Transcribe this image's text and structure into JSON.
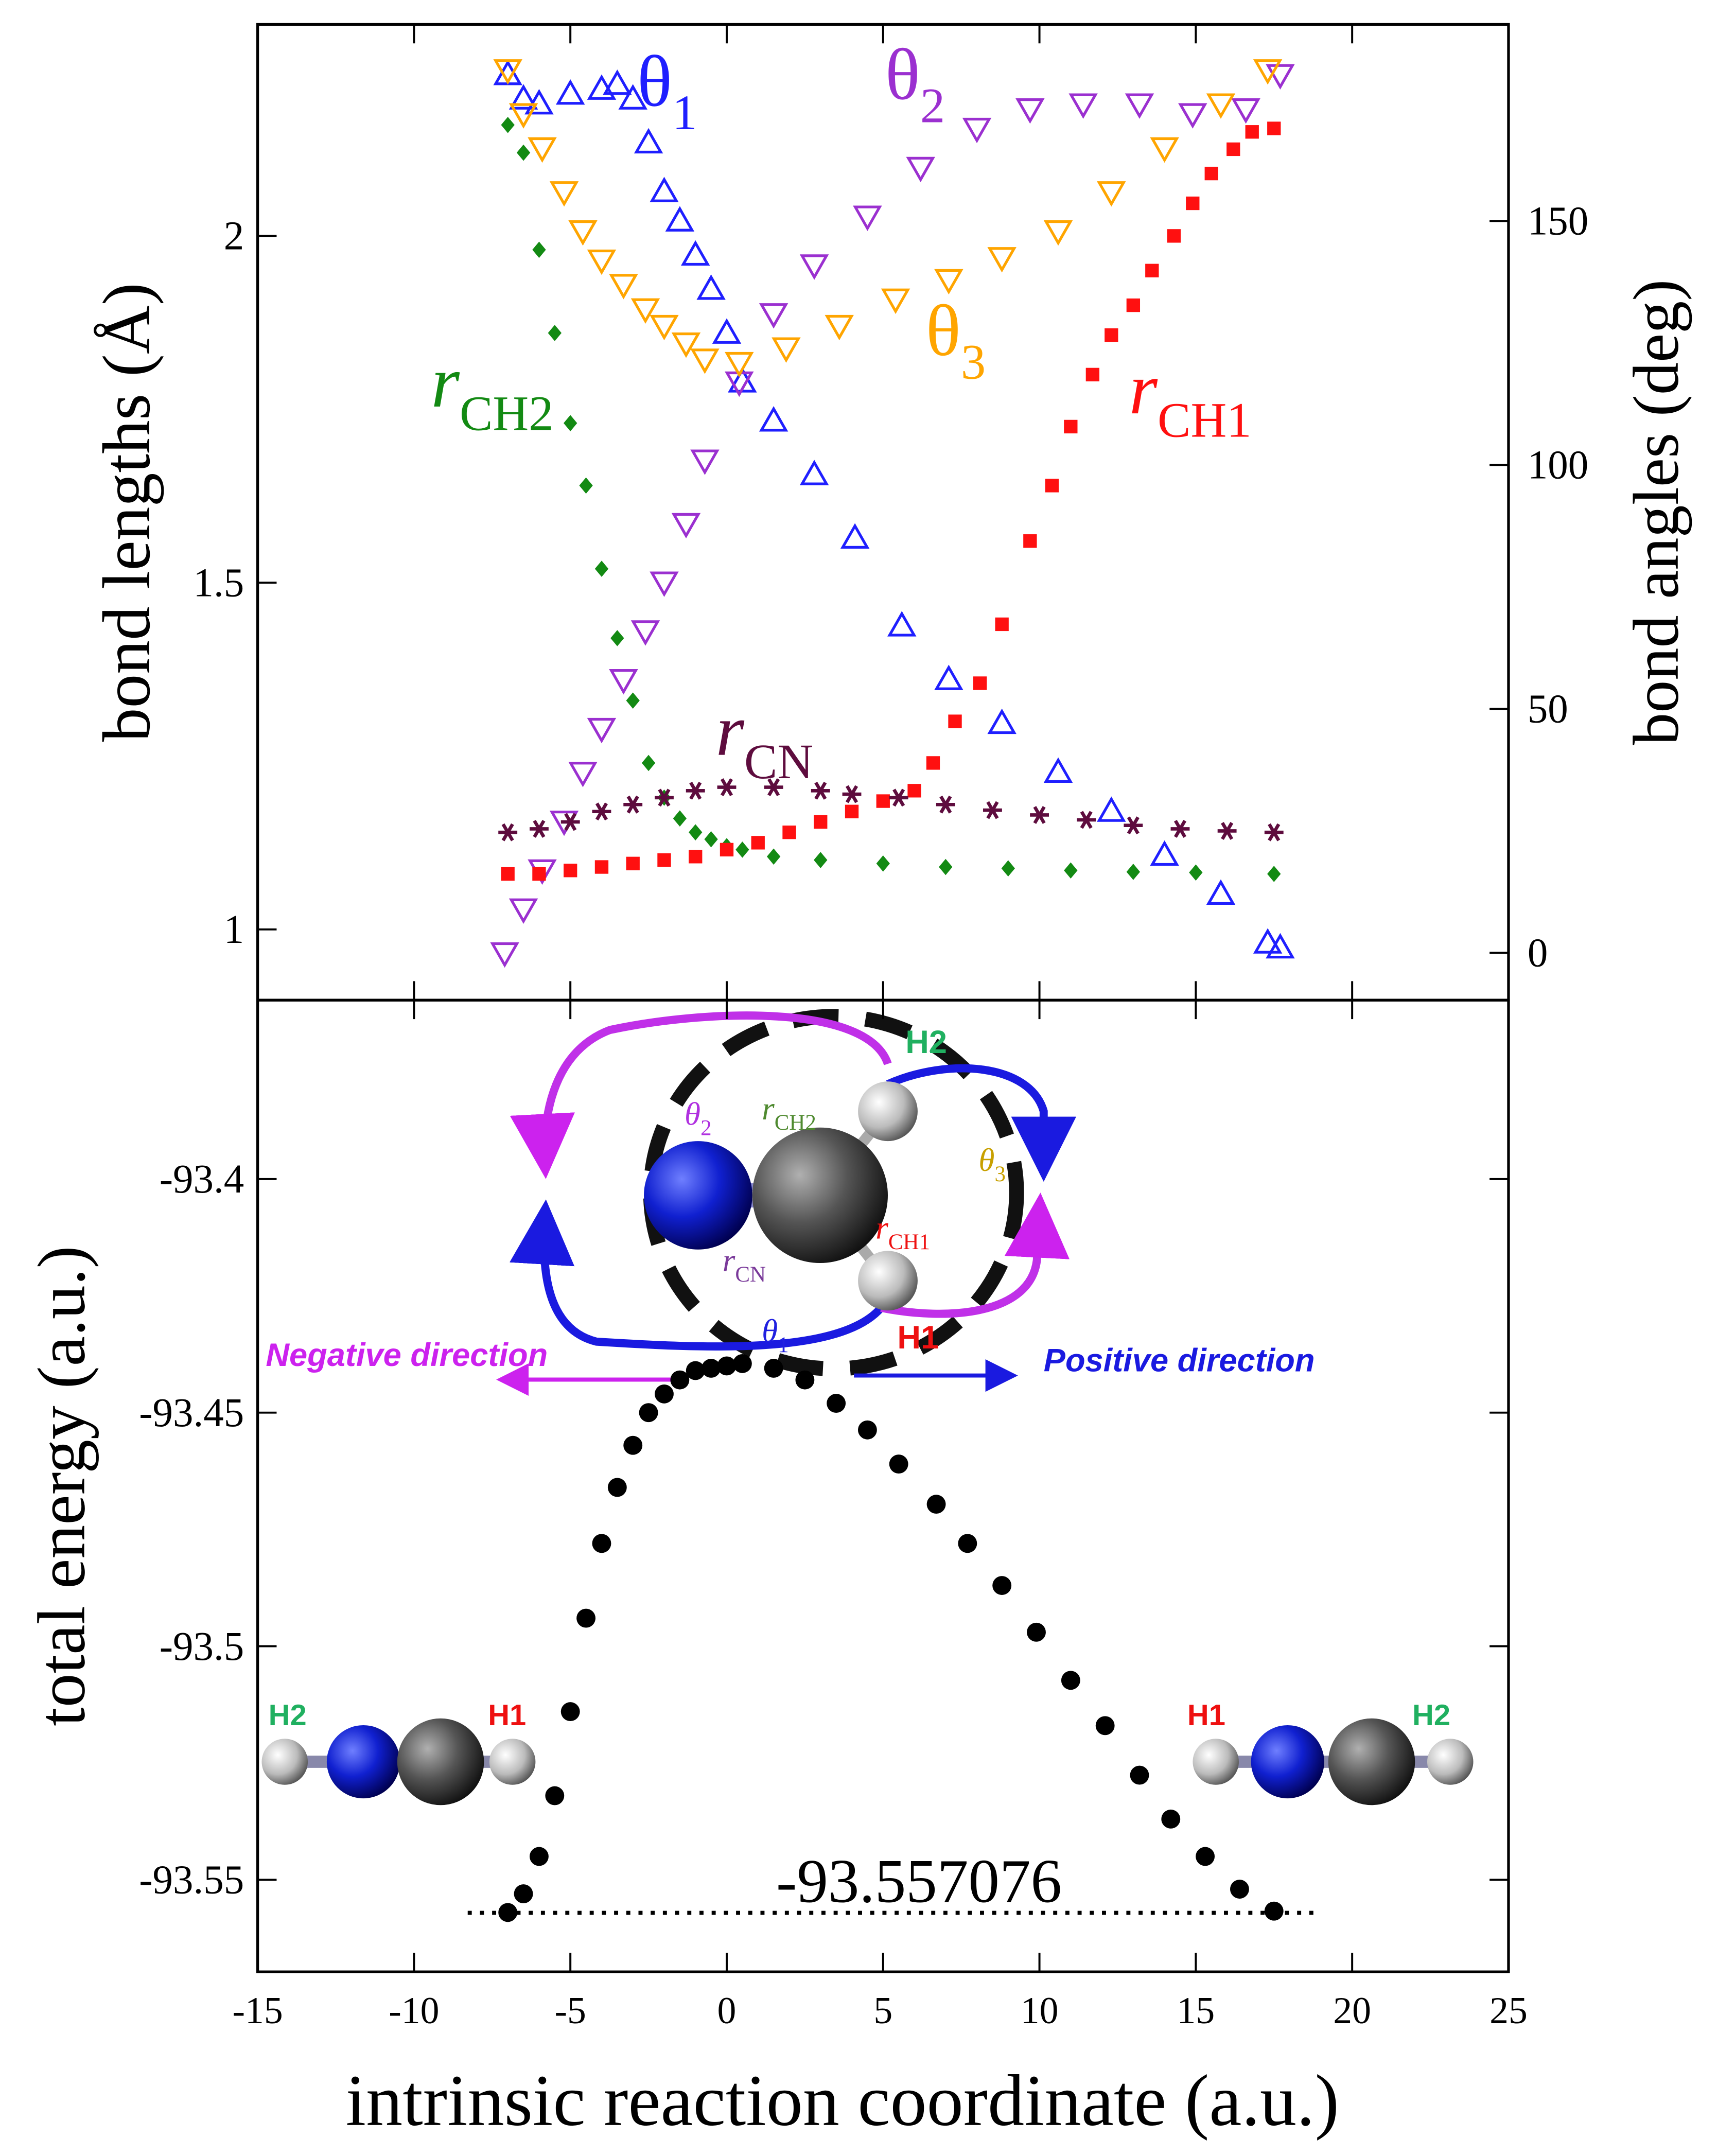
{
  "chart_data": [
    {
      "type": "scatter",
      "ylabel": "bond lengths (Å)",
      "y2label": "bond angles (deg)",
      "xlim": [
        -15,
        25
      ],
      "xticks": [
        -15,
        -10,
        -5,
        0,
        5,
        10,
        15,
        20,
        25
      ],
      "ylim": [
        0.898,
        2.305
      ],
      "yticks": [
        1,
        1.5,
        2
      ],
      "y2lim": [
        -9.7,
        190.3
      ],
      "y2ticks": [
        0,
        50,
        100,
        150
      ],
      "series": [
        {
          "name": "θ",
          "subscript": "1",
          "axis": "y2",
          "color": "#1f1fff",
          "marker": "triangle-up",
          "x": [
            -7,
            -6.5,
            -6,
            -5,
            -4,
            -3.5,
            -3,
            -2.5,
            -2,
            -1.5,
            -1,
            -0.5,
            0,
            0.5,
            1.5,
            2.8,
            4.1,
            5.6,
            7.1,
            8.8,
            10.6,
            12.3,
            14,
            15.8,
            17.3,
            17.7
          ],
          "values": [
            180,
            175,
            174,
            176,
            177,
            178,
            175,
            166,
            156,
            150,
            143,
            136,
            127,
            117,
            109,
            98,
            85,
            67,
            56,
            47,
            37,
            29,
            20,
            12,
            2,
            1
          ]
        },
        {
          "name": "θ",
          "subscript": "2",
          "axis": "y2",
          "color": "#9b30d0",
          "marker": "triangle-down",
          "x": [
            -7.1,
            -6.5,
            -5.9,
            -5.2,
            -4.6,
            -4,
            -3.3,
            -2.6,
            -2,
            -1.3,
            -0.7,
            0.4,
            1.5,
            2.8,
            4.5,
            6.2,
            8,
            9.7,
            11.4,
            13.2,
            14.9,
            16.6,
            17.7
          ],
          "values": [
            0,
            9,
            17,
            27,
            37,
            46,
            56,
            66,
            76,
            88,
            101,
            117,
            131,
            141,
            151,
            161,
            169,
            173,
            174,
            174,
            172,
            173,
            180
          ]
        },
        {
          "name": "θ",
          "subscript": "3",
          "axis": "y2",
          "color": "#ffa500",
          "marker": "triangle-down",
          "x": [
            -7,
            -6.5,
            -5.9,
            -5.2,
            -4.6,
            -4,
            -3.3,
            -2.6,
            -2,
            -1.3,
            -0.7,
            0.4,
            1.9,
            3.6,
            5.4,
            7.1,
            8.8,
            10.6,
            12.3,
            14,
            15.8,
            17.3
          ],
          "values": [
            181,
            172,
            165,
            156,
            148,
            142,
            137,
            132,
            128.6,
            125,
            121.7,
            121,
            124,
            128.6,
            134,
            138,
            142.5,
            148,
            156,
            165,
            174,
            181
          ]
        },
        {
          "name": "r",
          "subscript": "CH2",
          "color": "#138a13",
          "marker": "diamond",
          "x": [
            -7,
            -6.5,
            -6,
            -5.5,
            -5,
            -4.5,
            -4,
            -3.5,
            -3,
            -2.5,
            -2,
            -1.5,
            -1,
            -0.5,
            0,
            0.5,
            1.5,
            3,
            5,
            7,
            9,
            11,
            13,
            15,
            17.5
          ],
          "values": [
            2.16,
            2.12,
            1.98,
            1.86,
            1.73,
            1.64,
            1.52,
            1.42,
            1.33,
            1.24,
            1.19,
            1.16,
            1.14,
            1.13,
            1.12,
            1.115,
            1.105,
            1.1,
            1.095,
            1.09,
            1.088,
            1.085,
            1.083,
            1.082,
            1.08
          ]
        },
        {
          "name": "r",
          "subscript": "CH1",
          "color": "#ff1010",
          "marker": "square",
          "x": [
            -7,
            -6,
            -5,
            -4,
            -3,
            -2,
            -1,
            0,
            1,
            2,
            3,
            4,
            5,
            6,
            6.6,
            7.3,
            8.1,
            8.8,
            9.7,
            10.4,
            11,
            11.7,
            12.3,
            13,
            13.6,
            14.3,
            14.9,
            15.5,
            16.2,
            16.8,
            17.5
          ],
          "values": [
            1.08,
            1.08,
            1.085,
            1.09,
            1.095,
            1.1,
            1.105,
            1.115,
            1.125,
            1.14,
            1.155,
            1.17,
            1.185,
            1.2,
            1.24,
            1.3,
            1.355,
            1.44,
            1.56,
            1.64,
            1.725,
            1.8,
            1.857,
            1.9,
            1.95,
            2.0,
            2.047,
            2.09,
            2.125,
            2.15,
            2.155
          ]
        },
        {
          "name": "r",
          "subscript": "CN",
          "color": "#5e0c3e",
          "marker": "star",
          "x": [
            -7,
            -6,
            -5,
            -4,
            -3,
            -2,
            -1,
            0,
            1.5,
            3,
            4,
            5.5,
            7,
            8.5,
            10,
            11.5,
            13,
            14.5,
            16,
            17.5
          ],
          "values": [
            1.14,
            1.145,
            1.155,
            1.17,
            1.18,
            1.19,
            1.2,
            1.205,
            1.205,
            1.2,
            1.195,
            1.19,
            1.18,
            1.172,
            1.165,
            1.158,
            1.15,
            1.145,
            1.142,
            1.14
          ]
        }
      ]
    },
    {
      "type": "scatter",
      "xlabel": "intrinsic reaction coordinate (a.u.)",
      "ylabel": "total energy (a.u.)",
      "xlim": [
        -15,
        25
      ],
      "xticks": [
        -15,
        -10,
        -5,
        0,
        5,
        10,
        15,
        20,
        25
      ],
      "ylim": [
        -93.5697,
        -93.3617
      ],
      "yticks": [
        -93.4,
        -93.45,
        -93.5,
        -93.55
      ],
      "hline": -93.557076,
      "series": [
        {
          "color": "#000000",
          "marker": "circle",
          "x": [
            -7,
            -6.5,
            -6,
            -5.5,
            -5,
            -4.5,
            -4,
            -3.5,
            -3,
            -2.5,
            -2,
            -1.5,
            -1,
            -0.5,
            0,
            0.5,
            1.5,
            2.5,
            3.5,
            4.5,
            5.5,
            6.7,
            7.7,
            8.8,
            9.9,
            11,
            12.1,
            13.2,
            14.2,
            15.3,
            16.4,
            17.5
          ],
          "values": [
            -93.557,
            -93.553,
            -93.545,
            -93.532,
            -93.514,
            -93.494,
            -93.478,
            -93.466,
            -93.457,
            -93.45,
            -93.446,
            -93.443,
            -93.441,
            -93.4405,
            -93.44,
            -93.4395,
            -93.4405,
            -93.443,
            -93.448,
            -93.4537,
            -93.461,
            -93.4696,
            -93.478,
            -93.487,
            -93.497,
            -93.5073,
            -93.517,
            -93.5276,
            -93.537,
            -93.545,
            -93.552,
            -93.5567
          ]
        }
      ],
      "annotations": [
        {
          "text": "H2"
        },
        {
          "text": "θ",
          "sub": "2"
        },
        {
          "text": "r",
          "sub": "CH2"
        },
        {
          "text": "θ",
          "sub": "3"
        },
        {
          "text": "r",
          "sub": "CH1"
        },
        {
          "text": "r",
          "sub": "CN"
        },
        {
          "text": "θ",
          "sub": "1"
        },
        {
          "text": "H1"
        },
        {
          "text": "Negative direction"
        },
        {
          "text": "Positive direction"
        },
        {
          "text": "H2"
        },
        {
          "text": "H1"
        },
        {
          "text": "H1"
        },
        {
          "text": "H2"
        }
      ]
    }
  ]
}
